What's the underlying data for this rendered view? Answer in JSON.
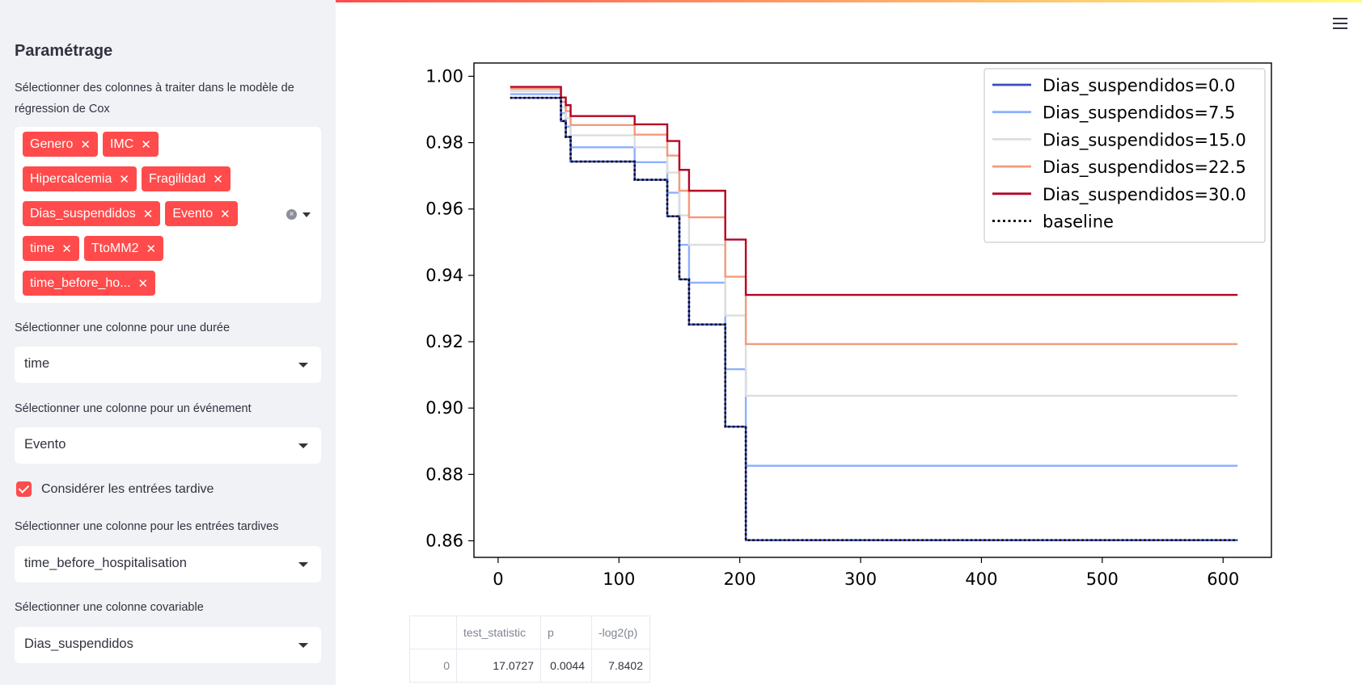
{
  "sidebar": {
    "title": "Paramétrage",
    "columns_label": "Sélectionner des colonnes à traiter dans le modèle de régression de Cox",
    "selected_columns": [
      "Genero",
      "IMC",
      "Hipercalcemia",
      "Fragilidad",
      "Dias_suspendidos",
      "Evento",
      "time",
      "TtoMM2",
      "time_before_ho..."
    ],
    "duration_label": "Sélectionner une colonne pour une durée",
    "duration_value": "time",
    "event_label": "Sélectionner une colonne pour un événement",
    "event_value": "Evento",
    "late_entries_checkbox": {
      "label": "Considérer les entrées tardive",
      "checked": true
    },
    "late_entries_label": "Sélectionner une colonne pour les entrées tardives",
    "late_entries_value": "time_before_hospitalisation",
    "covariate_label": "Sélectionner une colonne covariable",
    "covariate_value": "Dias_suspendidos"
  },
  "menu_icon": "hamburger-menu-icon",
  "chart_data": {
    "type": "line",
    "step": true,
    "xlim": [
      -20,
      640
    ],
    "ylim": [
      0.855,
      1.004
    ],
    "xticks": [
      "0",
      "100",
      "200",
      "300",
      "400",
      "500",
      "600"
    ],
    "yticks": [
      "0.86",
      "0.88",
      "0.90",
      "0.92",
      "0.94",
      "0.96",
      "0.98",
      "1.00"
    ],
    "legend_position": "top-right",
    "series": [
      {
        "name": "Dias_suspendidos=0.0",
        "color": "#3b4cc0",
        "style": "solid",
        "x": [
          10,
          52,
          56,
          60,
          113,
          140,
          150,
          158,
          188,
          205,
          612
        ],
        "y": [
          0.9935,
          0.9865,
          0.9817,
          0.9743,
          0.9688,
          0.9578,
          0.9388,
          0.9252,
          0.8944,
          0.8602,
          0.8602
        ]
      },
      {
        "name": "Dias_suspendidos=7.5",
        "color": "#8db0fe",
        "style": "solid",
        "x": [
          10,
          52,
          56,
          60,
          113,
          140,
          150,
          158,
          188,
          205,
          612
        ],
        "y": [
          0.9946,
          0.9889,
          0.9848,
          0.9786,
          0.9741,
          0.9649,
          0.9492,
          0.9378,
          0.9117,
          0.8826,
          0.8826
        ]
      },
      {
        "name": "Dias_suspendidos=15.0",
        "color": "#dddddd",
        "style": "solid",
        "x": [
          10,
          52,
          56,
          60,
          113,
          140,
          150,
          158,
          188,
          205,
          612
        ],
        "y": [
          0.9955,
          0.9907,
          0.9874,
          0.9822,
          0.9786,
          0.971,
          0.9581,
          0.9492,
          0.9279,
          0.9037,
          0.9037
        ]
      },
      {
        "name": "Dias_suspendidos=22.5",
        "color": "#f49a7b",
        "style": "solid",
        "x": [
          10,
          52,
          56,
          60,
          113,
          140,
          150,
          158,
          188,
          205,
          612
        ],
        "y": [
          0.9962,
          0.9923,
          0.9895,
          0.9853,
          0.9824,
          0.9761,
          0.9655,
          0.9575,
          0.9396,
          0.9193,
          0.9193
        ]
      },
      {
        "name": "Dias_suspendidos=30.0",
        "color": "#b40426",
        "style": "solid",
        "x": [
          10,
          52,
          56,
          60,
          113,
          140,
          150,
          158,
          188,
          205,
          612
        ],
        "y": [
          0.9968,
          0.9936,
          0.9913,
          0.988,
          0.9855,
          0.9805,
          0.9718,
          0.9655,
          0.9508,
          0.9341,
          0.9341
        ]
      },
      {
        "name": "baseline",
        "color": "#000000",
        "style": "dotted",
        "x": [
          10,
          52,
          56,
          60,
          113,
          140,
          150,
          158,
          188,
          205,
          612
        ],
        "y": [
          0.9935,
          0.9865,
          0.9817,
          0.9743,
          0.9688,
          0.9578,
          0.9388,
          0.9252,
          0.8944,
          0.8602,
          0.8602
        ]
      }
    ]
  },
  "table": {
    "headers": [
      "",
      "test_statistic",
      "p",
      "-log2(p)"
    ],
    "rows": [
      [
        "0",
        "17.0727",
        "0.0044",
        "7.8402"
      ]
    ]
  }
}
